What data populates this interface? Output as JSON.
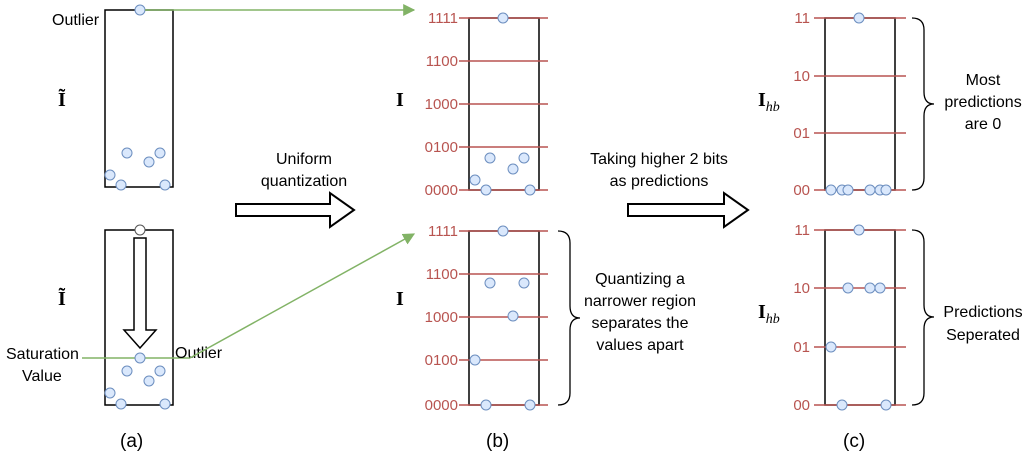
{
  "panels": {
    "a": {
      "caption": "(a)",
      "top_symbol": "Ĩ",
      "bottom_symbol": "Ĩ",
      "outlier_label_top": "Outlier",
      "outlier_label_bottom": "Outlier",
      "saturation_label_line1": "Saturation",
      "saturation_label_line2": "Value"
    },
    "b": {
      "caption": "(b)",
      "symbol": "I",
      "ticks": [
        "1111",
        "1100",
        "1000",
        "0100",
        "0000"
      ],
      "note_lines": [
        "Quantizing a",
        "narrower region",
        "separates the",
        "values apart"
      ]
    },
    "c": {
      "caption": "(c)",
      "symbol_main": "I",
      "symbol_sub": "hb",
      "ticks": [
        "11",
        "10",
        "01",
        "00"
      ],
      "note_top_lines": [
        "Most",
        "predictions",
        "are 0"
      ],
      "note_bottom_lines": [
        "Predictions",
        "Seperated"
      ]
    }
  },
  "arrows": {
    "arrow1_lines": [
      "Uniform",
      "quantization"
    ],
    "arrow2_lines": [
      "Taking higher 2 bits",
      "as predictions"
    ]
  },
  "colors": {
    "grid_line": "#b85450",
    "point_fill": "#dae8fc",
    "point_stroke": "#6c8ebf",
    "connector": "#82b366"
  }
}
